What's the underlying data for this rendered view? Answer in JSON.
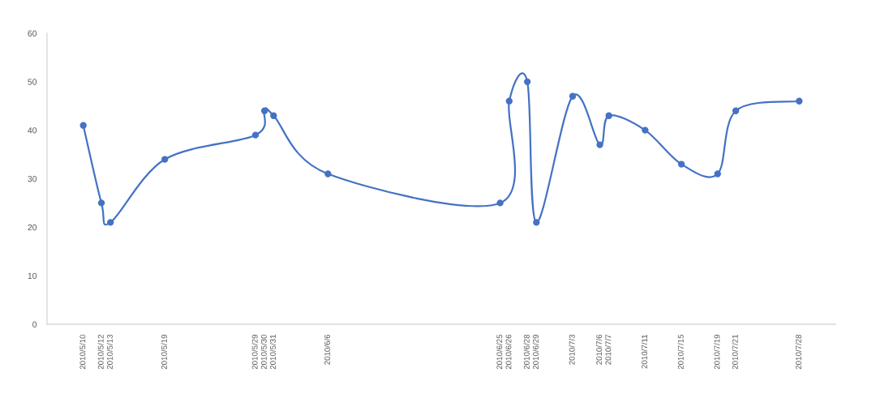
{
  "chart_data": {
    "type": "line",
    "x": [
      "2010-05-10",
      "2010-05-12",
      "2010-05-13",
      "2010-05-19",
      "2010-05-29",
      "2010-05-30",
      "2010-05-31",
      "2010-06-06",
      "2010-06-25",
      "2010-06-26",
      "2010-06-28",
      "2010-06-29",
      "2010-07-03",
      "2010-07-06",
      "2010-07-07",
      "2010-07-11",
      "2010-07-15",
      "2010-07-19",
      "2010-07-21",
      "2010-07-28"
    ],
    "series": [
      {
        "color": "#4472c4",
        "values": [
          41,
          25,
          21,
          34,
          39,
          44,
          43,
          31,
          25,
          46,
          50,
          21,
          47,
          37,
          43,
          40,
          33,
          31,
          44,
          46
        ]
      }
    ],
    "xlim": [
      "2010-05-06",
      "2010-08-01"
    ],
    "xticks": [
      {
        "value": "2010-05-10",
        "label": "2010/5/10"
      },
      {
        "value": "2010-05-12",
        "label": "2010/5/12"
      },
      {
        "value": "2010-05-13",
        "label": "2010/5/13"
      },
      {
        "value": "2010-05-19",
        "label": "2010/5/19"
      },
      {
        "value": "2010-05-29",
        "label": "2010/5/29"
      },
      {
        "value": "2010-05-30",
        "label": "2010/5/30"
      },
      {
        "value": "2010-05-31",
        "label": "2010/5/31"
      },
      {
        "value": "2010-06-06",
        "label": "2010/6/6"
      },
      {
        "value": "2010-06-25",
        "label": "2010/6/25"
      },
      {
        "value": "2010-06-26",
        "label": "2010/6/26"
      },
      {
        "value": "2010-06-28",
        "label": "2010/6/28"
      },
      {
        "value": "2010-06-29",
        "label": "2010/6/29"
      },
      {
        "value": "2010-07-03",
        "label": "2010/7/3"
      },
      {
        "value": "2010-07-06",
        "label": "2010/7/6"
      },
      {
        "value": "2010-07-07",
        "label": "2010/7/7"
      },
      {
        "value": "2010-07-11",
        "label": "2010/7/11"
      },
      {
        "value": "2010-07-15",
        "label": "2010/7/15"
      },
      {
        "value": "2010-07-19",
        "label": "2010/7/19"
      },
      {
        "value": "2010-07-21",
        "label": "2010/7/21"
      },
      {
        "value": "2010-07-28",
        "label": "2010/7/28"
      }
    ],
    "ylim": [
      0,
      60
    ],
    "yticks": [
      0,
      10,
      20,
      30,
      40,
      50,
      60
    ],
    "marker": "circle",
    "line_style": "solid"
  }
}
